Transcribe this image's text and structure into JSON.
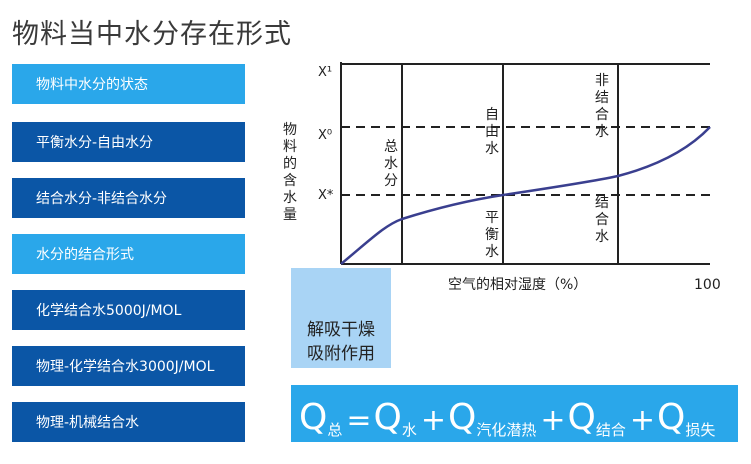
{
  "title": "物料当中水分存在形式",
  "menu": [
    {
      "label": "物料中水分的状态",
      "style": "light"
    },
    {
      "label": "平衡水分-自由水分",
      "style": "dark"
    },
    {
      "label": "结合水分-非结合水分",
      "style": "dark"
    },
    {
      "label": "水分的结合形式",
      "style": "light"
    },
    {
      "label": "化学结合水5000J/MOL",
      "style": "dark"
    },
    {
      "label": "物理-化学结合水3000J/MOL",
      "style": "dark"
    },
    {
      "label": "物理-机械结合水",
      "style": "dark"
    }
  ],
  "desorption_box": {
    "line1": "解吸干燥",
    "line2": "吸附作用"
  },
  "formula": {
    "Q": "Q",
    "eq": "=",
    "plus": "+",
    "subs": [
      "总",
      "水",
      "汽化潜热",
      "结合",
      "损失"
    ]
  },
  "chart": {
    "y_label": [
      "物",
      "料",
      "的",
      "含",
      "水",
      "量"
    ],
    "x_label": "空气的相对湿度（%）",
    "x_end": "100",
    "y_ticks": [
      "X¹",
      "X⁰",
      "X*"
    ],
    "regions": {
      "total": [
        "总",
        "水",
        "分"
      ],
      "free": [
        "自",
        "由",
        "水"
      ],
      "equilibrium": [
        "平",
        "衡",
        "水"
      ],
      "unbound": [
        "非",
        "结",
        "合",
        "水"
      ],
      "bound": [
        "结",
        "合",
        "水"
      ]
    }
  },
  "colors": {
    "light_blue": "#2aa7ea",
    "dark_blue": "#0b56a6",
    "pale_blue": "#a9d4f5",
    "curve": "#3a3f8f"
  }
}
